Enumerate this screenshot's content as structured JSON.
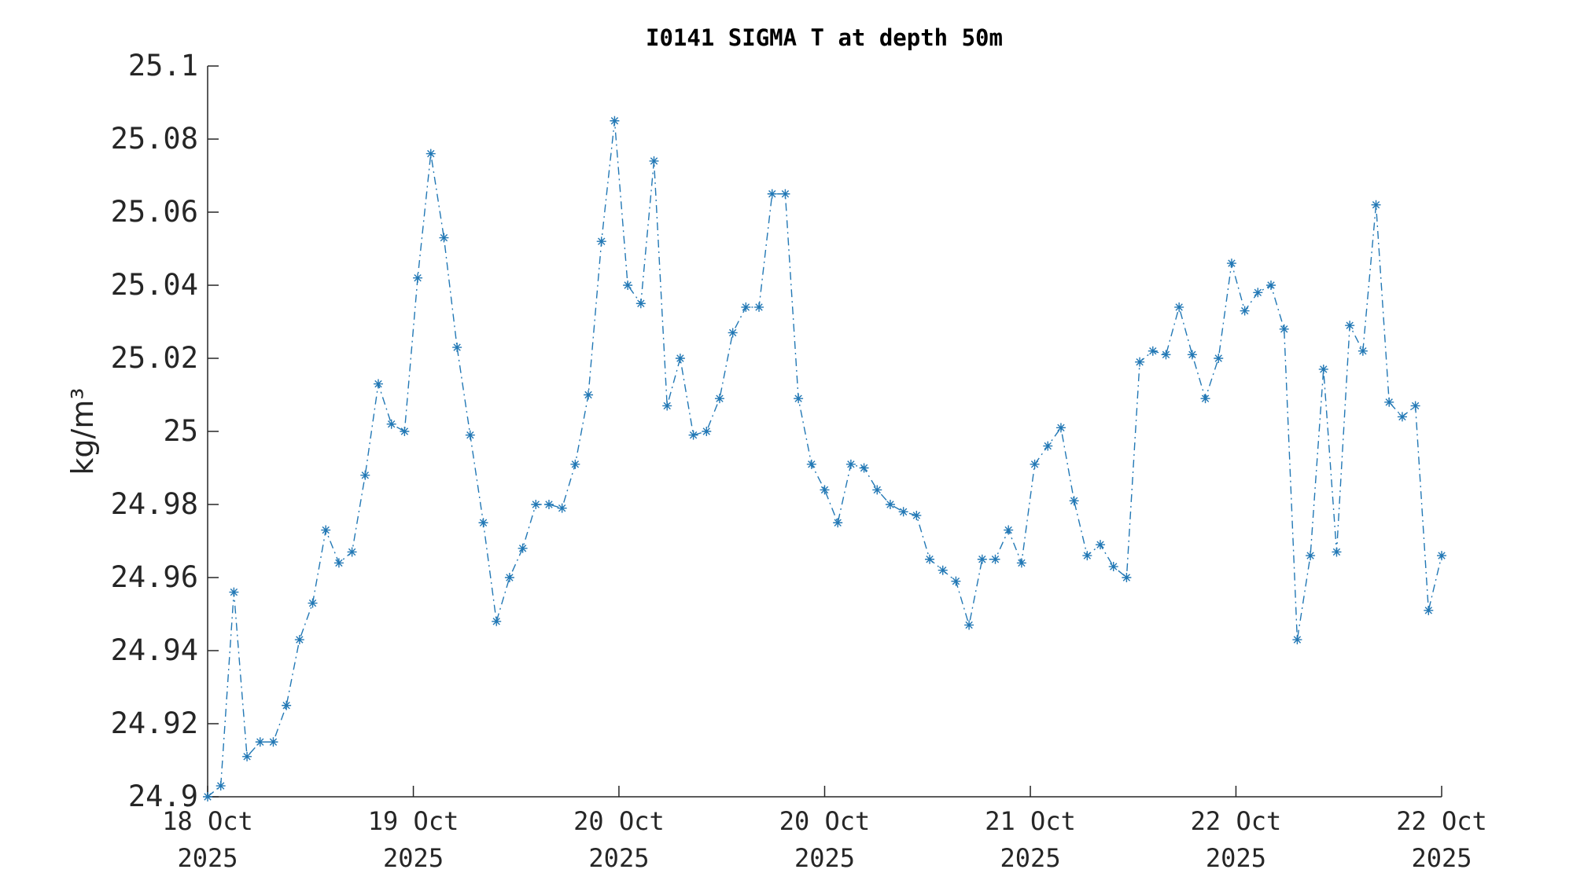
{
  "chart_data": {
    "type": "line",
    "title": "I0141 SIGMA T at depth 50m",
    "y_label": "kg/m³",
    "color": "#2278b5",
    "marker": "asterisk",
    "line_style": "dash-dot",
    "x": [
      0,
      1,
      2,
      3,
      4,
      5,
      6,
      7,
      8,
      9,
      10,
      11,
      12,
      13,
      14,
      15,
      16,
      17,
      18,
      19,
      20,
      21,
      22,
      23,
      24,
      25,
      26,
      27,
      28,
      29,
      30,
      31,
      32,
      33,
      34,
      35,
      36,
      37,
      38,
      39,
      40,
      41,
      42,
      43,
      44,
      45,
      46,
      47,
      48,
      49,
      50,
      51,
      52,
      53,
      54,
      55,
      56,
      57,
      58,
      59,
      60,
      61,
      62,
      63,
      64,
      65,
      66,
      67,
      68,
      69,
      70,
      71,
      72,
      73,
      74,
      75,
      76,
      77,
      78,
      79,
      80,
      81,
      82,
      83,
      84,
      85,
      86,
      87,
      88,
      89,
      90,
      91,
      92,
      93,
      94
    ],
    "values": [
      24.9,
      24.903,
      24.956,
      24.911,
      24.915,
      24.915,
      24.925,
      24.943,
      24.953,
      24.973,
      24.964,
      24.967,
      24.988,
      25.013,
      25.002,
      25.0,
      25.042,
      25.076,
      25.053,
      25.023,
      24.999,
      24.975,
      24.948,
      24.96,
      24.968,
      24.98,
      24.98,
      24.979,
      24.991,
      25.01,
      25.052,
      25.085,
      25.04,
      25.035,
      25.074,
      25.007,
      25.02,
      24.999,
      25.0,
      25.009,
      25.027,
      25.034,
      25.034,
      25.065,
      25.065,
      25.009,
      24.991,
      24.984,
      24.975,
      24.991,
      24.99,
      24.984,
      24.98,
      24.978,
      24.977,
      24.965,
      24.962,
      24.959,
      24.947,
      24.965,
      24.965,
      24.973,
      24.964,
      24.991,
      24.996,
      25.001,
      24.981,
      24.966,
      24.969,
      24.963,
      24.96,
      25.019,
      25.022,
      25.021,
      25.034,
      25.021,
      25.009,
      25.02,
      25.046,
      25.033,
      25.038,
      25.04,
      25.028,
      24.943,
      24.966,
      25.017,
      24.967,
      25.029,
      25.022,
      25.062,
      25.008,
      25.004,
      25.007,
      24.951,
      24.966
    ],
    "xlim": [
      0,
      94
    ],
    "xticks": [
      {
        "value": 0,
        "label": "18 Oct 2025"
      },
      {
        "value": 15.67,
        "label": "19 Oct 2025"
      },
      {
        "value": 31.33,
        "label": "20 Oct 2025"
      },
      {
        "value": 47,
        "label": "20 Oct 2025"
      },
      {
        "value": 62.67,
        "label": "21 Oct 2025"
      },
      {
        "value": 78.33,
        "label": "22 Oct 2025"
      },
      {
        "value": 94,
        "label": "22 Oct 2025"
      }
    ],
    "ylim": [
      24.9,
      25.1
    ],
    "yticks": [
      24.9,
      24.92,
      24.94,
      24.96,
      24.98,
      25,
      25.02,
      25.04,
      25.06,
      25.08,
      25.1
    ],
    "grid": false
  }
}
